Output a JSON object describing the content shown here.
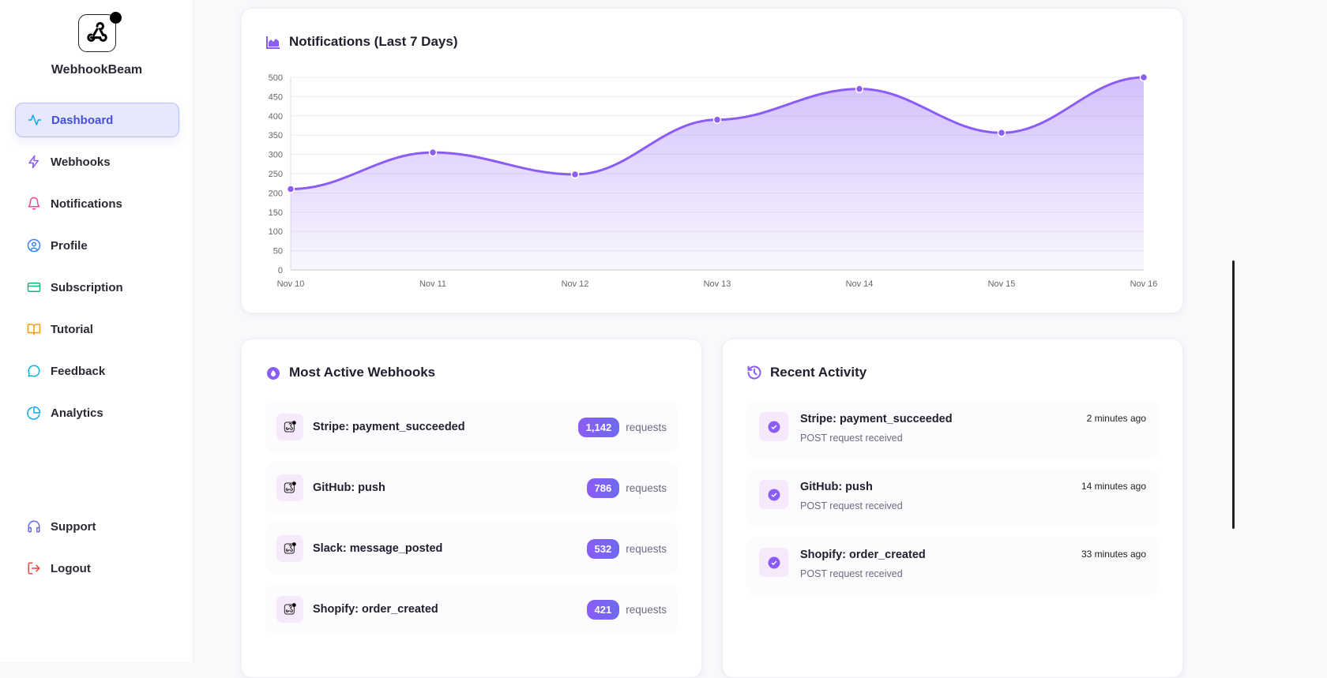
{
  "app": {
    "name": "WebhookBeam"
  },
  "sidebar": {
    "items": [
      {
        "label": "Dashboard",
        "icon": "activity-icon",
        "color": "#0ea5e9"
      },
      {
        "label": "Webhooks",
        "icon": "zap-icon",
        "color": "#8b5cf6"
      },
      {
        "label": "Notifications",
        "icon": "bell-icon",
        "color": "#ec4899"
      },
      {
        "label": "Profile",
        "icon": "user-circle-icon",
        "color": "#3b82f6"
      },
      {
        "label": "Subscription",
        "icon": "credit-card-icon",
        "color": "#10b981"
      },
      {
        "label": "Tutorial",
        "icon": "book-icon",
        "color": "#f59e0b"
      },
      {
        "label": "Feedback",
        "icon": "message-circle-icon",
        "color": "#06b6d4"
      },
      {
        "label": "Analytics",
        "icon": "pie-chart-icon",
        "color": "#0ea5e9"
      }
    ],
    "bottom": [
      {
        "label": "Support",
        "icon": "headphones-icon",
        "color": "#6366f1"
      },
      {
        "label": "Logout",
        "icon": "logout-icon",
        "color": "#ef4444"
      }
    ]
  },
  "chart_data": {
    "type": "area",
    "title": "Notifications (Last 7 Days)",
    "categories": [
      "Nov 10",
      "Nov 11",
      "Nov 12",
      "Nov 13",
      "Nov 14",
      "Nov 15",
      "Nov 16"
    ],
    "values": [
      210,
      305,
      248,
      390,
      470,
      356,
      500
    ],
    "ylim": [
      0,
      500
    ],
    "yticks": [
      0,
      50,
      100,
      150,
      200,
      250,
      300,
      350,
      400,
      450,
      500
    ],
    "grid": true,
    "color": "#8b5cf6"
  },
  "most_active": {
    "title": "Most Active Webhooks",
    "unit": "requests",
    "items": [
      {
        "name": "Stripe: payment_succeeded",
        "count": "1,142"
      },
      {
        "name": "GitHub: push",
        "count": "786"
      },
      {
        "name": "Slack: message_posted",
        "count": "532"
      },
      {
        "name": "Shopify: order_created",
        "count": "421"
      }
    ]
  },
  "recent": {
    "title": "Recent Activity",
    "items": [
      {
        "name": "Stripe: payment_succeeded",
        "sub": "POST request received",
        "time": "2 minutes ago"
      },
      {
        "name": "GitHub: push",
        "sub": "POST request received",
        "time": "14 minutes ago"
      },
      {
        "name": "Shopify: order_created",
        "sub": "POST request received",
        "time": "33 minutes ago"
      }
    ]
  }
}
